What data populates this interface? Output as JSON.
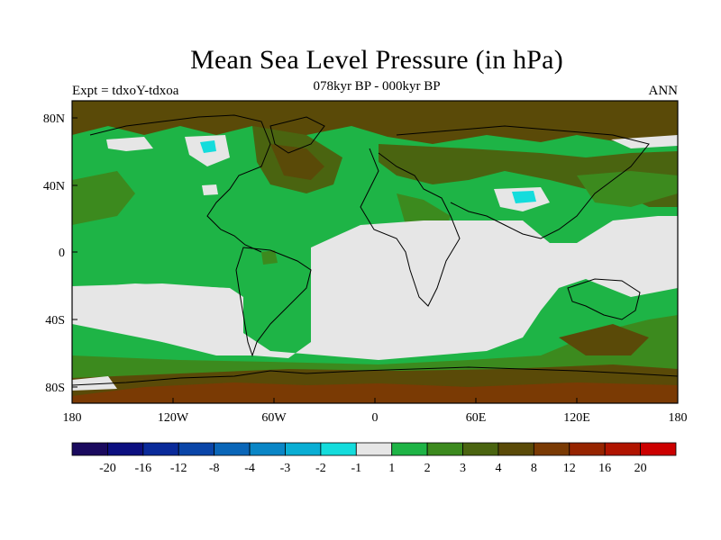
{
  "title": "Mean Sea Level Pressure (in hPa)",
  "subtitle_left": "Expt = tdxoY-tdxoa",
  "subtitle_center": "078kyr BP - 000kyr BP",
  "subtitle_right": "ANN",
  "lat_labels": [
    "80N",
    "40N",
    "0",
    "40S",
    "80S"
  ],
  "lon_labels": [
    "180",
    "120W",
    "60W",
    "0",
    "60E",
    "120E",
    "180"
  ],
  "colorbar": {
    "colors": [
      "#1a0a5e",
      "#0c0f80",
      "#0a2a9a",
      "#0a45a8",
      "#0a66b8",
      "#0a86c6",
      "#0aaed4",
      "#14dcdc",
      "#e6e6e6",
      "#1eb446",
      "#3c8a1e",
      "#4a6410",
      "#5a4a08",
      "#7a3a04",
      "#962400",
      "#b01400",
      "#cc0000"
    ],
    "labels": [
      "-20",
      "-16",
      "-12",
      "-8",
      "-4",
      "-3",
      "-2",
      "-1",
      "1",
      "2",
      "3",
      "4",
      "8",
      "12",
      "16",
      "20"
    ]
  }
}
